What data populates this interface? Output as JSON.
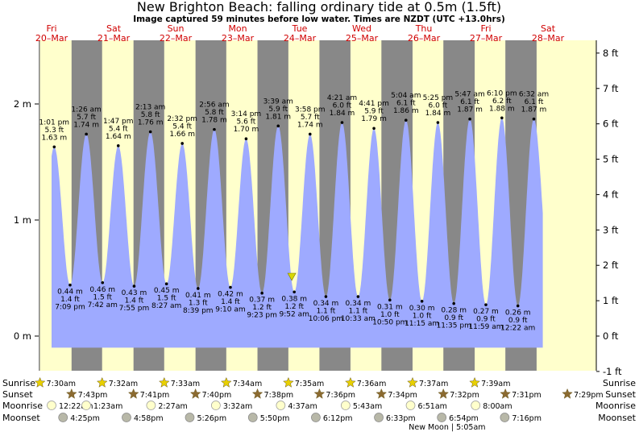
{
  "title": "New Brighton Beach: falling  ordinary tide at 0.5m (1.5ft)",
  "subtitle": "Image captured 59 minutes before low water. Times are NZDT (UTC +13.0hrs)",
  "colors": {
    "night": "#888888",
    "day": "#ffffcc",
    "water": "#9eaaff",
    "day_label": "#d00000",
    "now_marker": "#d8d800",
    "sun_star": "#e8d000",
    "set_star": "#8b6a30",
    "moonrise": "#ffffcc",
    "moonset": "#b8b8a8"
  },
  "chart_data": {
    "type": "area",
    "title": "New Brighton Beach: falling  ordinary tide at 0.5m (1.5ft)",
    "y_left_unit": "m",
    "y_left_ticks": [
      "2 m",
      "1 m",
      "0 m"
    ],
    "y_right_unit": "ft",
    "y_right_ticks": [
      "8 ft",
      "7 ft",
      "6 ft",
      "5 ft",
      "4 ft",
      "3 ft",
      "2 ft",
      "1 ft",
      "0 ft",
      "-1 ft"
    ],
    "ylim_m": [
      -0.25,
      2.5
    ],
    "x_start": "20-Mar 07:00",
    "x_end": "28-Mar 18:00",
    "days": [
      {
        "dow": "Fri",
        "date": "20–Mar"
      },
      {
        "dow": "Sat",
        "date": "21–Mar"
      },
      {
        "dow": "Sun",
        "date": "22–Mar"
      },
      {
        "dow": "Mon",
        "date": "23–Mar"
      },
      {
        "dow": "Tue",
        "date": "24–Mar"
      },
      {
        "dow": "Wed",
        "date": "25–Mar"
      },
      {
        "dow": "Thu",
        "date": "26–Mar"
      },
      {
        "dow": "Fri",
        "date": "27–Mar"
      },
      {
        "dow": "Sat",
        "date": "28–Mar"
      }
    ],
    "high_tides": [
      {
        "day": 0,
        "time": "1:01 pm",
        "ft": "5.3 ft",
        "m": "1.63 m",
        "value": 1.63
      },
      {
        "day": 1,
        "time": "1:26 am",
        "ft": "5.7 ft",
        "m": "1.74 m",
        "value": 1.74
      },
      {
        "day": 1,
        "time": "1:47 pm",
        "ft": "5.4 ft",
        "m": "1.64 m",
        "value": 1.64
      },
      {
        "day": 2,
        "time": "2:13 am",
        "ft": "5.8 ft",
        "m": "1.76 m",
        "value": 1.76
      },
      {
        "day": 2,
        "time": "2:32 pm",
        "ft": "5.4 ft",
        "m": "1.66 m",
        "value": 1.66
      },
      {
        "day": 3,
        "time": "2:56 am",
        "ft": "5.8 ft",
        "m": "1.78 m",
        "value": 1.78
      },
      {
        "day": 3,
        "time": "3:14 pm",
        "ft": "5.6 ft",
        "m": "1.70 m",
        "value": 1.7
      },
      {
        "day": 4,
        "time": "3:39 am",
        "ft": "5.9 ft",
        "m": "1.81 m",
        "value": 1.81
      },
      {
        "day": 4,
        "time": "3:58 pm",
        "ft": "5.7 ft",
        "m": "1.74 m",
        "value": 1.74
      },
      {
        "day": 5,
        "time": "4:21 am",
        "ft": "6.0 ft",
        "m": "1.84 m",
        "value": 1.84
      },
      {
        "day": 5,
        "time": "4:41 pm",
        "ft": "5.9 ft",
        "m": "1.79 m",
        "value": 1.79
      },
      {
        "day": 6,
        "time": "5:04 am",
        "ft": "6.1 ft",
        "m": "1.86 m",
        "value": 1.86
      },
      {
        "day": 6,
        "time": "5:25 pm",
        "ft": "6.0 ft",
        "m": "1.84 m",
        "value": 1.84
      },
      {
        "day": 7,
        "time": "5:47 am",
        "ft": "6.1 ft",
        "m": "1.87 m",
        "value": 1.87
      },
      {
        "day": 7,
        "time": "6:10 pm",
        "ft": "6.2 ft",
        "m": "1.88 m",
        "value": 1.88
      },
      {
        "day": 8,
        "time": "6:32 am",
        "ft": "6.1 ft",
        "m": "1.87 m",
        "value": 1.87
      }
    ],
    "low_tides": [
      {
        "day": 0,
        "time": "7:09 pm",
        "ft": "1.4 ft",
        "m": "0.44 m",
        "value": 0.44
      },
      {
        "day": 1,
        "time": "7:42 am",
        "ft": "1.5 ft",
        "m": "0.46 m",
        "value": 0.46
      },
      {
        "day": 1,
        "time": "7:55 pm",
        "ft": "1.4 ft",
        "m": "0.43 m",
        "value": 0.43
      },
      {
        "day": 2,
        "time": "8:27 am",
        "ft": "1.5 ft",
        "m": "0.45 m",
        "value": 0.45
      },
      {
        "day": 2,
        "time": "8:39 pm",
        "ft": "1.3 ft",
        "m": "0.41 m",
        "value": 0.41
      },
      {
        "day": 3,
        "time": "9:10 am",
        "ft": "1.4 ft",
        "m": "0.42 m",
        "value": 0.42
      },
      {
        "day": 3,
        "time": "9:23 pm",
        "ft": "1.2 ft",
        "m": "0.37 m",
        "value": 0.37
      },
      {
        "day": 4,
        "time": "9:52 am",
        "ft": "1.2 ft",
        "m": "0.38 m",
        "value": 0.38
      },
      {
        "day": 4,
        "time": "10:06 pm",
        "ft": "1.1 ft",
        "m": "0.34 m",
        "value": 0.34
      },
      {
        "day": 5,
        "time": "10:33 am",
        "ft": "1.1 ft",
        "m": "0.34 m",
        "value": 0.34
      },
      {
        "day": 5,
        "time": "10:50 pm",
        "ft": "1.0 ft",
        "m": "0.31 m",
        "value": 0.31
      },
      {
        "day": 6,
        "time": "11:15 am",
        "ft": "1.0 ft",
        "m": "0.30 m",
        "value": 0.3
      },
      {
        "day": 6,
        "time": "11:35 pm",
        "ft": "0.9 ft",
        "m": "0.28 m",
        "value": 0.28
      },
      {
        "day": 7,
        "time": "11:59 am",
        "ft": "0.9 ft",
        "m": "0.27 m",
        "value": 0.27
      },
      {
        "day": 8,
        "time": "12:22 am",
        "ft": "0.9 ft",
        "m": "0.26 m",
        "value": 0.26
      }
    ],
    "now_marker": {
      "day": 4,
      "time_h": 8.9,
      "value": 0.5
    },
    "sunrise": [
      "7:30am",
      "7:32am",
      "7:33am",
      "7:34am",
      "7:35am",
      "7:36am",
      "7:37am",
      "7:39am"
    ],
    "sunset": [
      "7:43pm",
      "7:41pm",
      "7:40pm",
      "7:38pm",
      "7:36pm",
      "7:34pm",
      "7:32pm",
      "7:31pm",
      "7:29pm"
    ],
    "moonrise": [
      "12:22am",
      "1:23am",
      "2:27am",
      "3:32am",
      "4:37am",
      "5:43am",
      "6:51am",
      "8:00am"
    ],
    "moonset": [
      "4:25pm",
      "4:58pm",
      "5:26pm",
      "5:50pm",
      "6:12pm",
      "6:33pm",
      "6:54pm",
      "7:16pm"
    ],
    "moon_phase": "New Moon | 5:05am"
  },
  "rows": {
    "sunrise": "Sunrise",
    "sunset": "Sunset",
    "moonrise": "Moonrise",
    "moonset": "Moonset"
  }
}
